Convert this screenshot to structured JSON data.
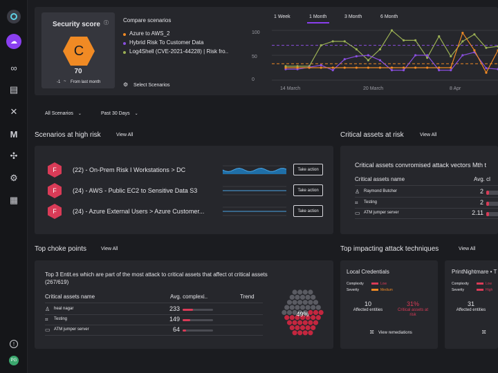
{
  "sidebar": {
    "items": [
      {
        "icon": "logo-icon"
      },
      {
        "icon": "cloud-upload-icon"
      },
      {
        "icon": "network-icon"
      },
      {
        "icon": "document-icon"
      },
      {
        "icon": "close-icon"
      },
      {
        "icon": "gmail-icon"
      },
      {
        "icon": "nodes-icon"
      },
      {
        "icon": "gear-icon"
      },
      {
        "icon": "report-search-icon"
      },
      {
        "icon": "help-icon"
      }
    ],
    "avatar": "PG"
  },
  "security": {
    "title": "Security score",
    "grade": "C",
    "score": "70",
    "delta": "-1",
    "delta_label": "From last month"
  },
  "compare": {
    "title": "Compare scenarios",
    "scenarios": [
      {
        "label": "Azure to AWS_2",
        "color": "#f08a24"
      },
      {
        "label": "Hybrid Risk To Customer Data",
        "color": "#8a4fe0"
      },
      {
        "label": "Log4Shell (CVE-2021-44228) | Risk fro..",
        "color": "#9bb054"
      }
    ],
    "select_label": "Select Scenarios"
  },
  "chart_data": {
    "type": "line",
    "ranges": [
      "1 Week",
      "1 Month",
      "3 Month",
      "6 Month"
    ],
    "selected_range": "1 Month",
    "yticks": [
      "100",
      "50",
      "0"
    ],
    "ylim": [
      0,
      100
    ],
    "xtick_labels": [
      "14 March",
      "20 March",
      "8 Apr"
    ],
    "x": [
      0,
      1,
      2,
      3,
      4,
      5,
      6,
      7,
      8,
      9,
      10,
      11,
      12,
      13,
      14,
      15,
      16,
      17,
      18
    ],
    "series": [
      {
        "name": "Log4Shell (CVE-2021-44228) | Risk fro..",
        "color": "#9bb054",
        "values": [
          28,
          28,
          28,
          70,
          78,
          78,
          62,
          40,
          62,
          100,
          80,
          80,
          45,
          88,
          48,
          78,
          92,
          65,
          68
        ]
      },
      {
        "name": "Hybrid Risk To Customer Data",
        "color": "#8a4fe0",
        "values": [
          22,
          22,
          26,
          30,
          20,
          42,
          48,
          50,
          40,
          20,
          20,
          50,
          50,
          20,
          20,
          50,
          56,
          24,
          22
        ]
      },
      {
        "name": "Azure to AWS_2",
        "color": "#f08a24",
        "values": [
          25,
          25,
          25,
          25,
          25,
          25,
          25,
          25,
          25,
          25,
          25,
          25,
          25,
          25,
          25,
          95,
          60,
          15,
          60
        ]
      }
    ],
    "threshold_lines": [
      {
        "value": 70,
        "color": "#8a4fe0"
      },
      {
        "value": 33,
        "color": "#f08a24"
      }
    ]
  },
  "filters": {
    "scenarios": "All Scenarios",
    "days": "Past 30 Days"
  },
  "high_risk": {
    "title": "Scenarios at high risk",
    "view_all": "View All",
    "action_label": "Take action",
    "items": [
      {
        "badge": "F",
        "label": "(22) - On-Prem Risk I Workstations > DC"
      },
      {
        "badge": "F",
        "label": "(24) - AWS - Public EC2 to Sensitive Data S3"
      },
      {
        "badge": "F",
        "label": "(24) - Azure External Users > Azure Customer..."
      }
    ]
  },
  "critical_assets": {
    "title": "Critical assets at risk",
    "view_all": "View All",
    "subtitle": "Critical assets convromised attack vectors Mth t",
    "col_name": "Critical assets name",
    "col_avg": "Avg. cl",
    "rows": [
      {
        "icon": "user-icon",
        "name": "Raymond Butcher",
        "value": "2",
        "fill": 0.1
      },
      {
        "icon": "chip-icon",
        "name": "Testing",
        "value": "2",
        "fill": 0.1
      },
      {
        "icon": "server-icon",
        "name": "ATM jumper server",
        "value": "2.11",
        "fill": 0.1
      }
    ]
  },
  "choke": {
    "title": "Top choke points",
    "view_all": "View All",
    "heading": "Top 3 Entit.es which are part of the most attack to critical assets that affect ot critical assets (267/619)",
    "col_name": "Critical assets name",
    "col_avg": "Avg. complexi..",
    "col_trend": "Trend",
    "rows": [
      {
        "icon": "user-icon",
        "name": "heal nagar",
        "value": "233",
        "fill": 0.35
      },
      {
        "icon": "chip-icon",
        "name": "Testing",
        "value": "149",
        "fill": 0.25
      },
      {
        "icon": "server-icon",
        "name": "ATM jumper server",
        "value": "64",
        "fill": 0.12
      }
    ],
    "honeycomb_pct": "49%",
    "honeycomb_fraction": 0.49
  },
  "techniques": {
    "title": "Top impacting attack techniques",
    "view_all": "View All",
    "complexity_label": "Complexity",
    "severity_label": "Severity",
    "affected_label": "Affected entities",
    "critical_label": "Critical assets at risk",
    "remediation_label": "View remediations",
    "cards": [
      {
        "title": "Local Credentials",
        "complexity": "Low",
        "severity": "Medium",
        "affected": "10",
        "critical_pct": "31%"
      },
      {
        "title": "PrintNightmare • T",
        "complexity": "Low",
        "severity": "High",
        "affected": "31"
      }
    ]
  }
}
